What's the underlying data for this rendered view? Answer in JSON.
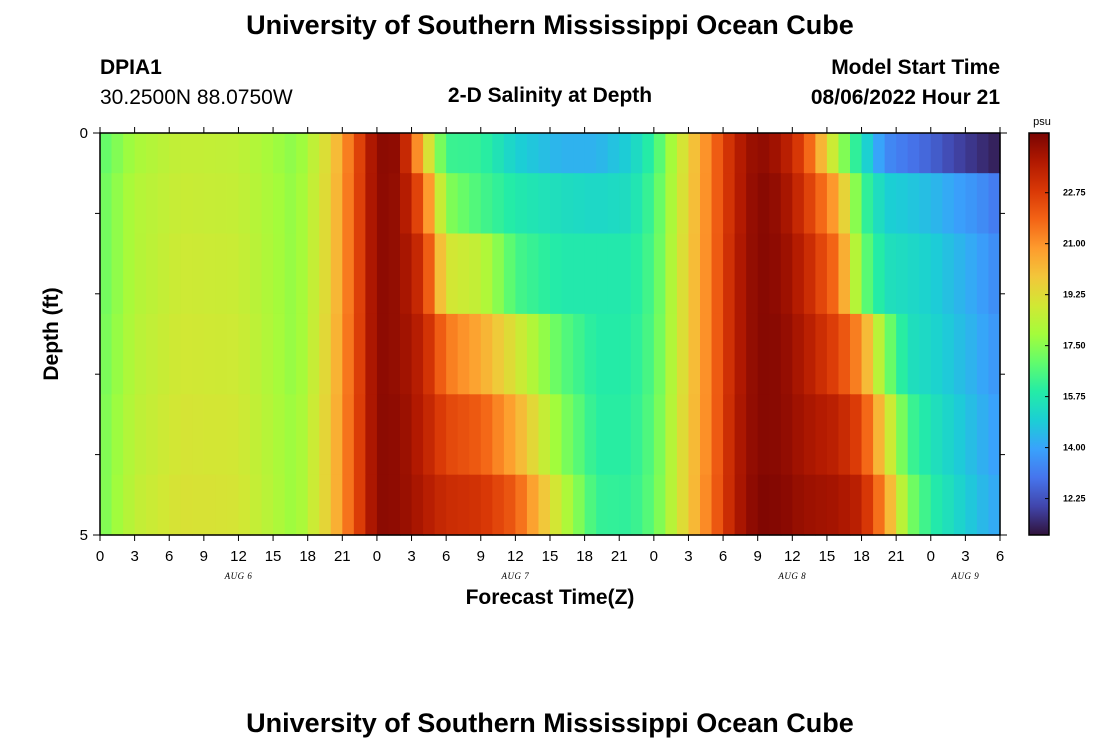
{
  "page": {
    "title_top": "University of Southern Mississippi Ocean Cube",
    "title_bottom": "University of Southern Mississippi Ocean Cube",
    "station_id": "DPIA1",
    "station_coords": "30.2500N  88.0750W",
    "chart_title": "2-D Salinity at Depth",
    "model_start_label": "Model Start Time",
    "model_start_value": "08/06/2022 Hour 21"
  },
  "chart_data": {
    "type": "heatmap",
    "title": "2-D Salinity at Depth",
    "xlabel": "Forecast Time(Z)",
    "ylabel": "Depth (ft)",
    "x_tick_labels": [
      "0",
      "3",
      "6",
      "9",
      "12",
      "15",
      "18",
      "21",
      "0",
      "3",
      "6",
      "9",
      "12",
      "15",
      "18",
      "21",
      "0",
      "3",
      "6",
      "9",
      "12",
      "15",
      "18",
      "21",
      "0",
      "3",
      "6"
    ],
    "x_hours": [
      0,
      3,
      6,
      9,
      12,
      15,
      18,
      21,
      24,
      27,
      30,
      33,
      36,
      39,
      42,
      45,
      48,
      51,
      54,
      57,
      60,
      63,
      66,
      69,
      72,
      75,
      78
    ],
    "date_labels": [
      {
        "label": "AUG 6",
        "hour": 12
      },
      {
        "label": "AUG 7",
        "hour": 36
      },
      {
        "label": "AUG 8",
        "hour": 60
      },
      {
        "label": "AUG 9",
        "hour": 75
      }
    ],
    "y_tick_labels": [
      "0",
      "5"
    ],
    "ylim": [
      0,
      5
    ],
    "xlim": [
      0,
      78
    ],
    "depth_layers": [
      0.25,
      0.75,
      1.75,
      2.75,
      3.75,
      4.75
    ],
    "colorbar": {
      "unit": "psu",
      "ticks": [
        12.25,
        14.0,
        15.75,
        17.5,
        19.25,
        21.0,
        22.75
      ],
      "tick_labels": [
        "12.25",
        "14.00",
        "15.75",
        "17.50",
        "19.25",
        "21.00",
        "22.75"
      ],
      "range": [
        11.0,
        24.8
      ]
    },
    "colormap": [
      "#30123b",
      "#4145ab",
      "#4675ed",
      "#39a2fc",
      "#1bcfd4",
      "#24eca6",
      "#61fc6c",
      "#a4fc3b",
      "#d1e834",
      "#f3c63a",
      "#fe9b2d",
      "#f36315",
      "#d93806",
      "#b11901",
      "#7a0402"
    ],
    "anchors_hours": [
      0,
      3,
      7,
      12,
      17,
      20,
      24,
      26,
      28,
      30,
      33,
      36,
      40,
      43,
      46,
      48,
      50,
      53,
      55,
      57,
      59,
      61,
      64,
      66,
      68,
      70,
      72,
      74,
      76,
      78
    ],
    "salinity_psu": [
      [
        16.8,
        18.0,
        18.6,
        18.5,
        17.5,
        19.5,
        24.5,
        24.4,
        20.0,
        16.3,
        16.2,
        15.0,
        14.3,
        14.3,
        15.0,
        16.2,
        18.5,
        21.5,
        23.5,
        24.5,
        24.0,
        22.5,
        18.0,
        15.5,
        13.5,
        13.0,
        12.6,
        12.0,
        11.6,
        11.2
      ],
      [
        17.0,
        18.2,
        18.7,
        18.6,
        17.6,
        19.6,
        24.5,
        24.3,
        22.0,
        17.5,
        16.5,
        15.8,
        15.4,
        15.2,
        15.4,
        16.5,
        18.6,
        21.5,
        23.5,
        24.6,
        24.3,
        23.0,
        20.5,
        16.5,
        15.0,
        14.8,
        14.5,
        14.0,
        13.6,
        13.0
      ],
      [
        17.0,
        18.2,
        18.8,
        18.7,
        17.6,
        19.6,
        24.5,
        24.3,
        23.0,
        19.0,
        18.5,
        16.5,
        15.8,
        15.8,
        15.8,
        16.6,
        18.7,
        21.5,
        23.6,
        24.6,
        24.4,
        23.5,
        21.5,
        17.2,
        15.5,
        15.3,
        15.0,
        14.5,
        14.0,
        13.4
      ],
      [
        17.1,
        18.3,
        18.9,
        18.8,
        17.6,
        19.7,
        24.5,
        24.3,
        23.5,
        21.5,
        20.5,
        19.0,
        16.8,
        15.9,
        15.9,
        16.7,
        18.7,
        21.5,
        23.6,
        24.6,
        24.5,
        23.8,
        22.5,
        21.0,
        17.5,
        15.5,
        15.2,
        14.7,
        14.2,
        13.6
      ],
      [
        17.2,
        18.4,
        19.0,
        18.9,
        17.7,
        19.8,
        24.5,
        24.4,
        23.6,
        22.5,
        22.0,
        20.5,
        17.5,
        16.0,
        16.0,
        16.8,
        18.8,
        21.5,
        23.7,
        24.6,
        24.5,
        24.0,
        23.5,
        22.5,
        19.5,
        16.5,
        15.6,
        15.0,
        14.4,
        13.8
      ],
      [
        17.2,
        18.5,
        19.1,
        19.0,
        17.7,
        19.8,
        24.5,
        24.4,
        23.8,
        23.2,
        23.0,
        22.0,
        18.5,
        16.2,
        16.1,
        16.9,
        18.8,
        21.6,
        23.7,
        24.7,
        24.6,
        24.2,
        24.0,
        23.5,
        21.0,
        17.5,
        16.0,
        15.3,
        14.6,
        14.0
      ]
    ]
  }
}
